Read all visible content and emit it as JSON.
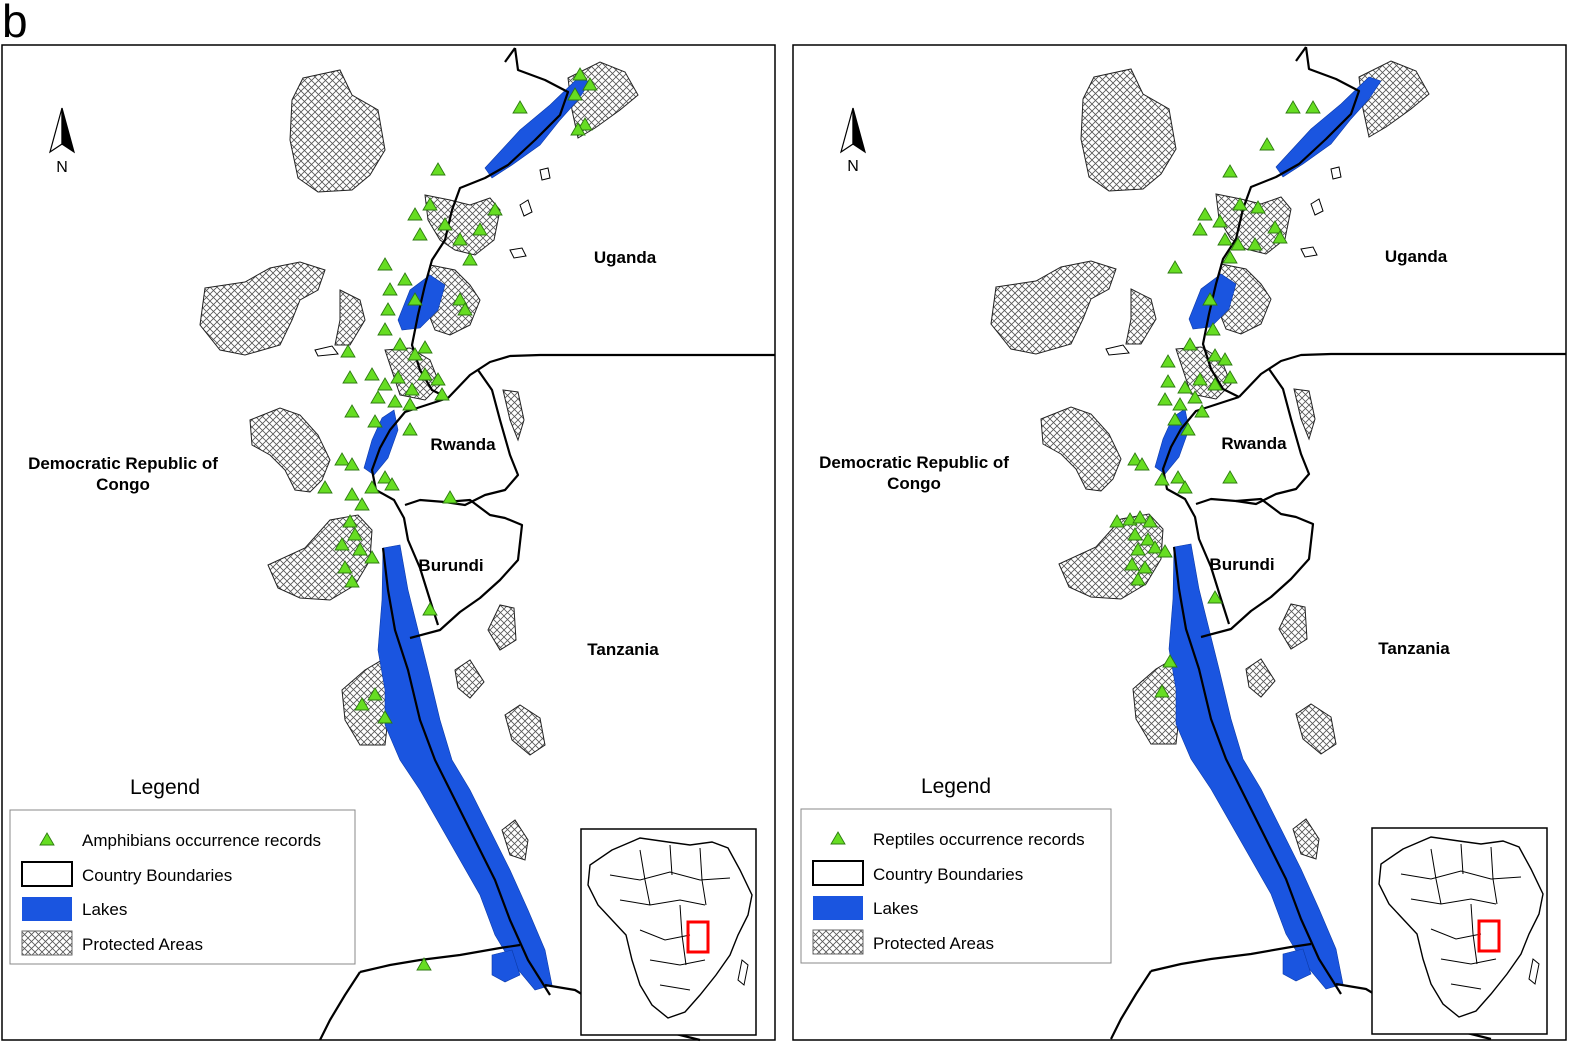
{
  "figure": {
    "panel_letter": "b"
  },
  "colors": {
    "lake": "#1a55e0",
    "marker": "#66dd22",
    "boundary": "#000000",
    "protected_fill": "#d9d9d9",
    "inset_box": "#ff0000"
  },
  "icons": {
    "north_arrow": "north-arrow-icon",
    "marker": "green-triangle-icon"
  },
  "maps": [
    {
      "id": "amphibians",
      "north_label": "N",
      "countries": {
        "uganda": "Uganda",
        "drc_line1": "Democratic Republic of",
        "drc_line2": "Congo",
        "rwanda": "Rwanda",
        "burundi": "Burundi",
        "tanzania": "Tanzania"
      },
      "legend": {
        "title": "Legend",
        "items": [
          {
            "label": "Amphibians occurrence records",
            "symbol": "green-triangle-icon"
          },
          {
            "label": "Country Boundaries",
            "symbol": "boundary-swatch"
          },
          {
            "label": "Lakes",
            "symbol": "lake-swatch"
          },
          {
            "label": "Protected Areas",
            "symbol": "protected-area-swatch"
          }
        ]
      }
    },
    {
      "id": "reptiles",
      "north_label": "N",
      "countries": {
        "uganda": "Uganda",
        "drc_line1": "Democratic Republic of",
        "drc_line2": "Congo",
        "rwanda": "Rwanda",
        "burundi": "Burundi",
        "tanzania": "Tanzania"
      },
      "legend": {
        "title": "Legend",
        "items": [
          {
            "label": "Reptiles occurrence records",
            "symbol": "green-triangle-icon"
          },
          {
            "label": "Country Boundaries",
            "symbol": "boundary-swatch"
          },
          {
            "label": "Lakes",
            "symbol": "lake-swatch"
          },
          {
            "label": "Protected Areas",
            "symbol": "protected-area-swatch"
          }
        ]
      }
    }
  ]
}
